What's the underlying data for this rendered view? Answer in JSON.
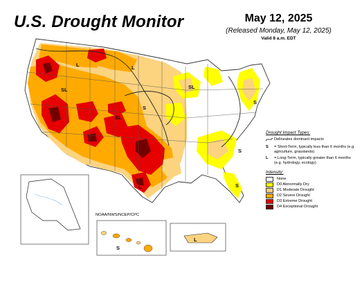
{
  "title": "U.S. Drought Monitor",
  "date": "May 12, 2025",
  "released": "(Released Monday, May 12, 2025)",
  "valid": "Valid 8 a.m. EDT",
  "author": "NOAA/NWS/NCEP/CPC",
  "impact_legend": {
    "header": "Drought Impact Types:",
    "line_label": "Delineates dominant impacts",
    "s_key": "S",
    "s_text": "= Short-Term, typically less than 6 months (e.g. agriculture, grasslands)",
    "l_key": "L",
    "l_text": "= Long-Term, typically greater than 6 months (e.g. hydrology, ecology)"
  },
  "intensity_legend": {
    "header": "Intensity:",
    "items": [
      {
        "label": "None",
        "color": "#ffffff"
      },
      {
        "label": "D0 Abnormally Dry",
        "color": "#ffff00"
      },
      {
        "label": "D1 Moderate Drought",
        "color": "#fcd37f"
      },
      {
        "label": "D2 Severe Drought",
        "color": "#ffaa00"
      },
      {
        "label": "D3 Extreme Drought",
        "color": "#e60000"
      },
      {
        "label": "D4 Exceptional Drought",
        "color": "#730000"
      }
    ]
  },
  "map_labels": {
    "l_northwest": "L",
    "sl_west": "SL",
    "l_plains": "L",
    "s_kansas": "S",
    "sl_midwest": "SL",
    "sl_plains": "SL",
    "l_texas": "L",
    "s_northeast": "S",
    "s_eastcoast": "S",
    "s_florida": "S",
    "s_hawaii": "S",
    "l_puertorico": "L"
  }
}
